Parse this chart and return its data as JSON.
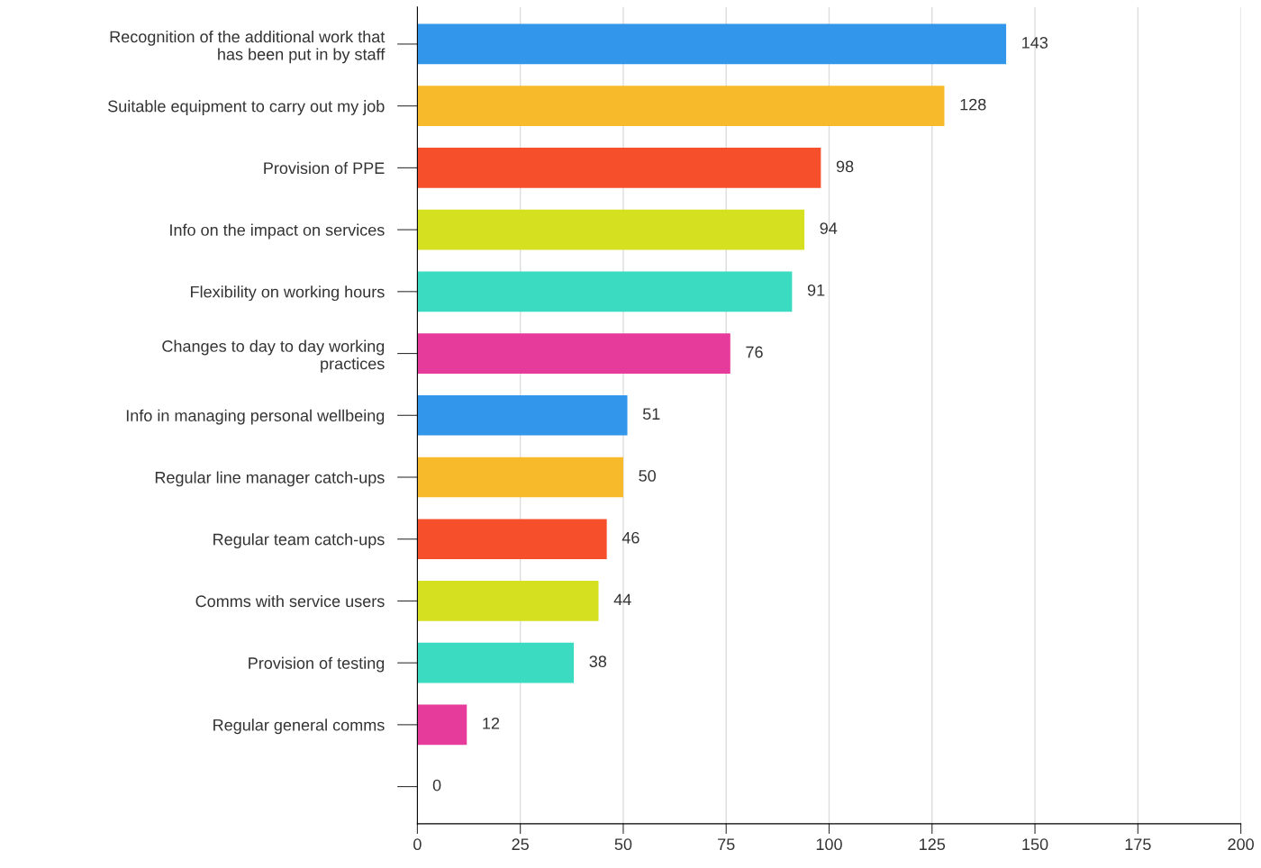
{
  "chart_data": {
    "type": "bar",
    "orientation": "horizontal",
    "categories": [
      "Recognition of the additional work that\nhas been put in by staff",
      "Suitable equipment to carry out my job",
      "Provision of PPE",
      "Info on the impact on services",
      "Flexibility on working hours",
      "Changes to day to day working\npractices",
      "Info in managing personal wellbeing",
      "Regular line manager catch-ups",
      "Regular team catch-ups",
      "Comms with service users",
      "Provision of testing",
      "Regular general comms",
      null
    ],
    "values": [
      143,
      128,
      98,
      94,
      91,
      76,
      51,
      50,
      46,
      44,
      38,
      12,
      0
    ],
    "colors": [
      "#3296ea",
      "#f6ba2a",
      "#f64f2c",
      "#d5e021",
      "#3bdbc2",
      "#e63b9a",
      "#3296ea",
      "#f6ba2a",
      "#f64f2c",
      "#d5e021",
      "#3bdbc2",
      "#e63b9a",
      "#3296ea"
    ],
    "xlim": [
      0,
      200
    ],
    "xticks": [
      0,
      25,
      50,
      75,
      100,
      125,
      150,
      175,
      200
    ],
    "grid": "x",
    "data_labels": true
  }
}
